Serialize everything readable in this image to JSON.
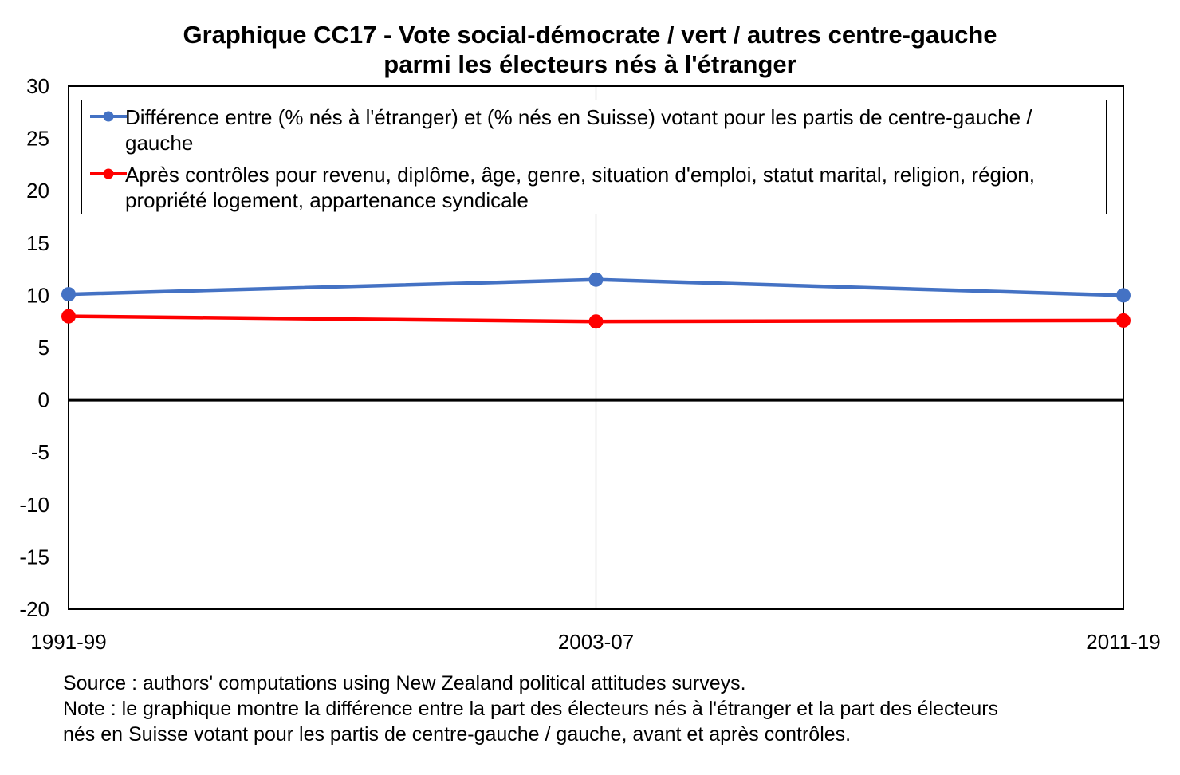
{
  "chart_data": {
    "type": "line",
    "title": "Graphique CC17 - Vote social-démocrate / vert / autres centre-gauche",
    "subtitle": "parmi les électeurs nés à l'étranger",
    "xlabel": "",
    "ylabel": "",
    "categories": [
      "1991-99",
      "2003-07",
      "2011-19"
    ],
    "ylim": [
      -20,
      30
    ],
    "yticks": [
      30,
      25,
      20,
      15,
      10,
      5,
      0,
      -5,
      -10,
      -15,
      -20
    ],
    "grid": "vertical",
    "zero_line": true,
    "legend_position": "top",
    "series": [
      {
        "name": "Différence entre (% nés à l'étranger) et (% nés en Suisse) votant pour les partis de centre-gauche / gauche",
        "name_lines": [
          "Différence entre (% nés à l'étranger) et (% nés en Suisse) votant pour les partis de centre-gauche /",
          "gauche"
        ],
        "values": [
          10.1,
          11.5,
          10.0
        ],
        "color": "#4472c4"
      },
      {
        "name": "Après contrôles pour revenu, diplôme, âge, genre, situation d'emploi, statut marital, religion, région, propriété logement, appartenance syndicale",
        "name_lines": [
          "Après contrôles pour revenu, diplôme, âge, genre, situation d'emploi, statut marital, religion, région,",
          "propriété logement, appartenance syndicale"
        ],
        "values": [
          8.0,
          7.5,
          7.6
        ],
        "color": "#ff0000"
      }
    ],
    "source": "Source : authors' computations using New Zealand political attitudes surveys.",
    "note_lines": [
      "Note : le graphique montre la différence entre la part des électeurs nés à l'étranger et la part des électeurs",
      "nés en Suisse votant pour les partis de centre-gauche / gauche, avant et après contrôles."
    ]
  }
}
